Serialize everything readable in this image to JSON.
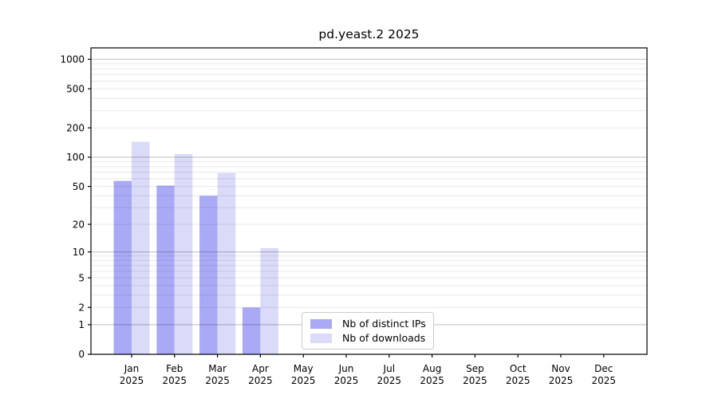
{
  "chart_data": {
    "type": "bar",
    "title": "pd.yeast.2 2025",
    "categories": [
      "Jan",
      "Feb",
      "Mar",
      "Apr",
      "May",
      "Jun",
      "Jul",
      "Aug",
      "Sep",
      "Oct",
      "Nov",
      "Dec"
    ],
    "category_year": "2025",
    "series": [
      {
        "key": "distinct-ips",
        "name": "Nb of distinct IPs",
        "color": "#a9a9f6",
        "values": [
          57,
          51,
          40,
          2,
          0,
          0,
          0,
          0,
          0,
          0,
          0,
          0
        ]
      },
      {
        "key": "downloads",
        "name": "Nb of downloads",
        "color": "#dadaf9",
        "values": [
          144,
          108,
          69,
          11,
          0,
          0,
          0,
          0,
          0,
          0,
          0,
          0
        ]
      }
    ],
    "yscale": "log1p",
    "yticks": [
      0,
      1,
      2,
      5,
      10,
      20,
      50,
      100,
      200,
      500,
      1000
    ],
    "ylim": [
      0,
      1307
    ],
    "xlabel": "",
    "ylabel": "",
    "grid": {
      "major_values": [
        1,
        10,
        100,
        1000
      ],
      "major_color": "#bdbdbd",
      "minor_color": "#e9e9e9"
    },
    "legend_position": "bottom-center-inside",
    "spine_color": "#000000"
  }
}
